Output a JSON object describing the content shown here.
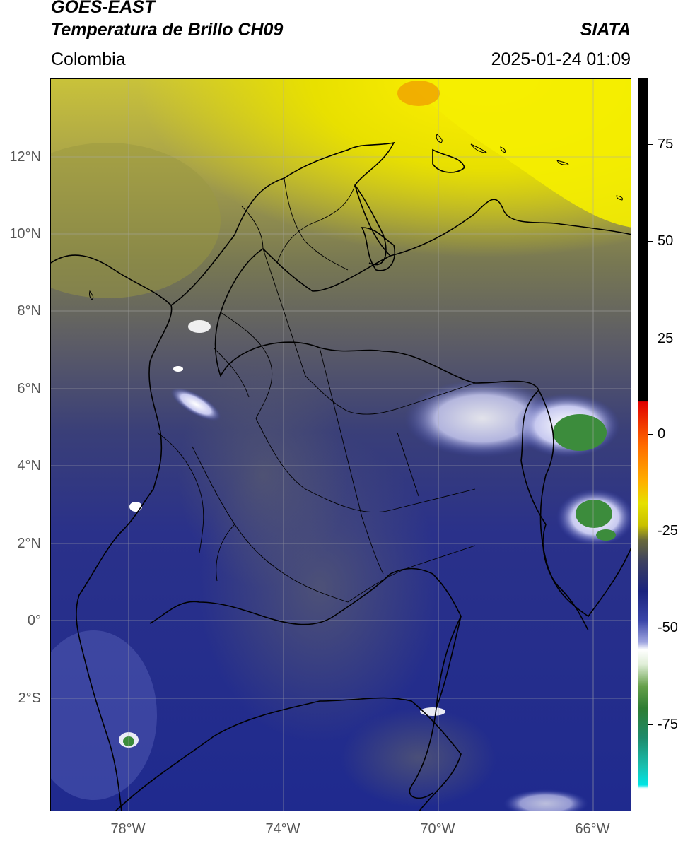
{
  "header": {
    "title_line1": "GOES-EAST",
    "title_line2": "Temperatura de Brillo CH09",
    "brand": "SIATA",
    "region": "Colombia",
    "timestamp": "2025-01-24 01:09"
  },
  "map": {
    "lat_labels": [
      "12°N",
      "10°N",
      "8°N",
      "6°N",
      "4°N",
      "2°N",
      "0°",
      "2°S"
    ],
    "lon_labels": [
      "78°W",
      "74°W",
      "70°W",
      "66°W"
    ],
    "colors": {
      "yellow": "#e6e000",
      "olive": "#8a8a3a",
      "gray": "#5a5a6e",
      "navy": "#1a237e",
      "white_cloud": "#f0f0ff",
      "green_core": "#3c8c3c"
    }
  },
  "colorbar": {
    "labels": [
      "75",
      "50",
      "25",
      "0",
      "-25",
      "-50",
      "-75"
    ],
    "colors": [
      "#000000",
      "#e00000",
      "#ff8c00",
      "#e6e000",
      "#55553a",
      "#1a237e",
      "#ffffff",
      "#2e7d32",
      "#00e5e5",
      "#ffffff"
    ]
  }
}
